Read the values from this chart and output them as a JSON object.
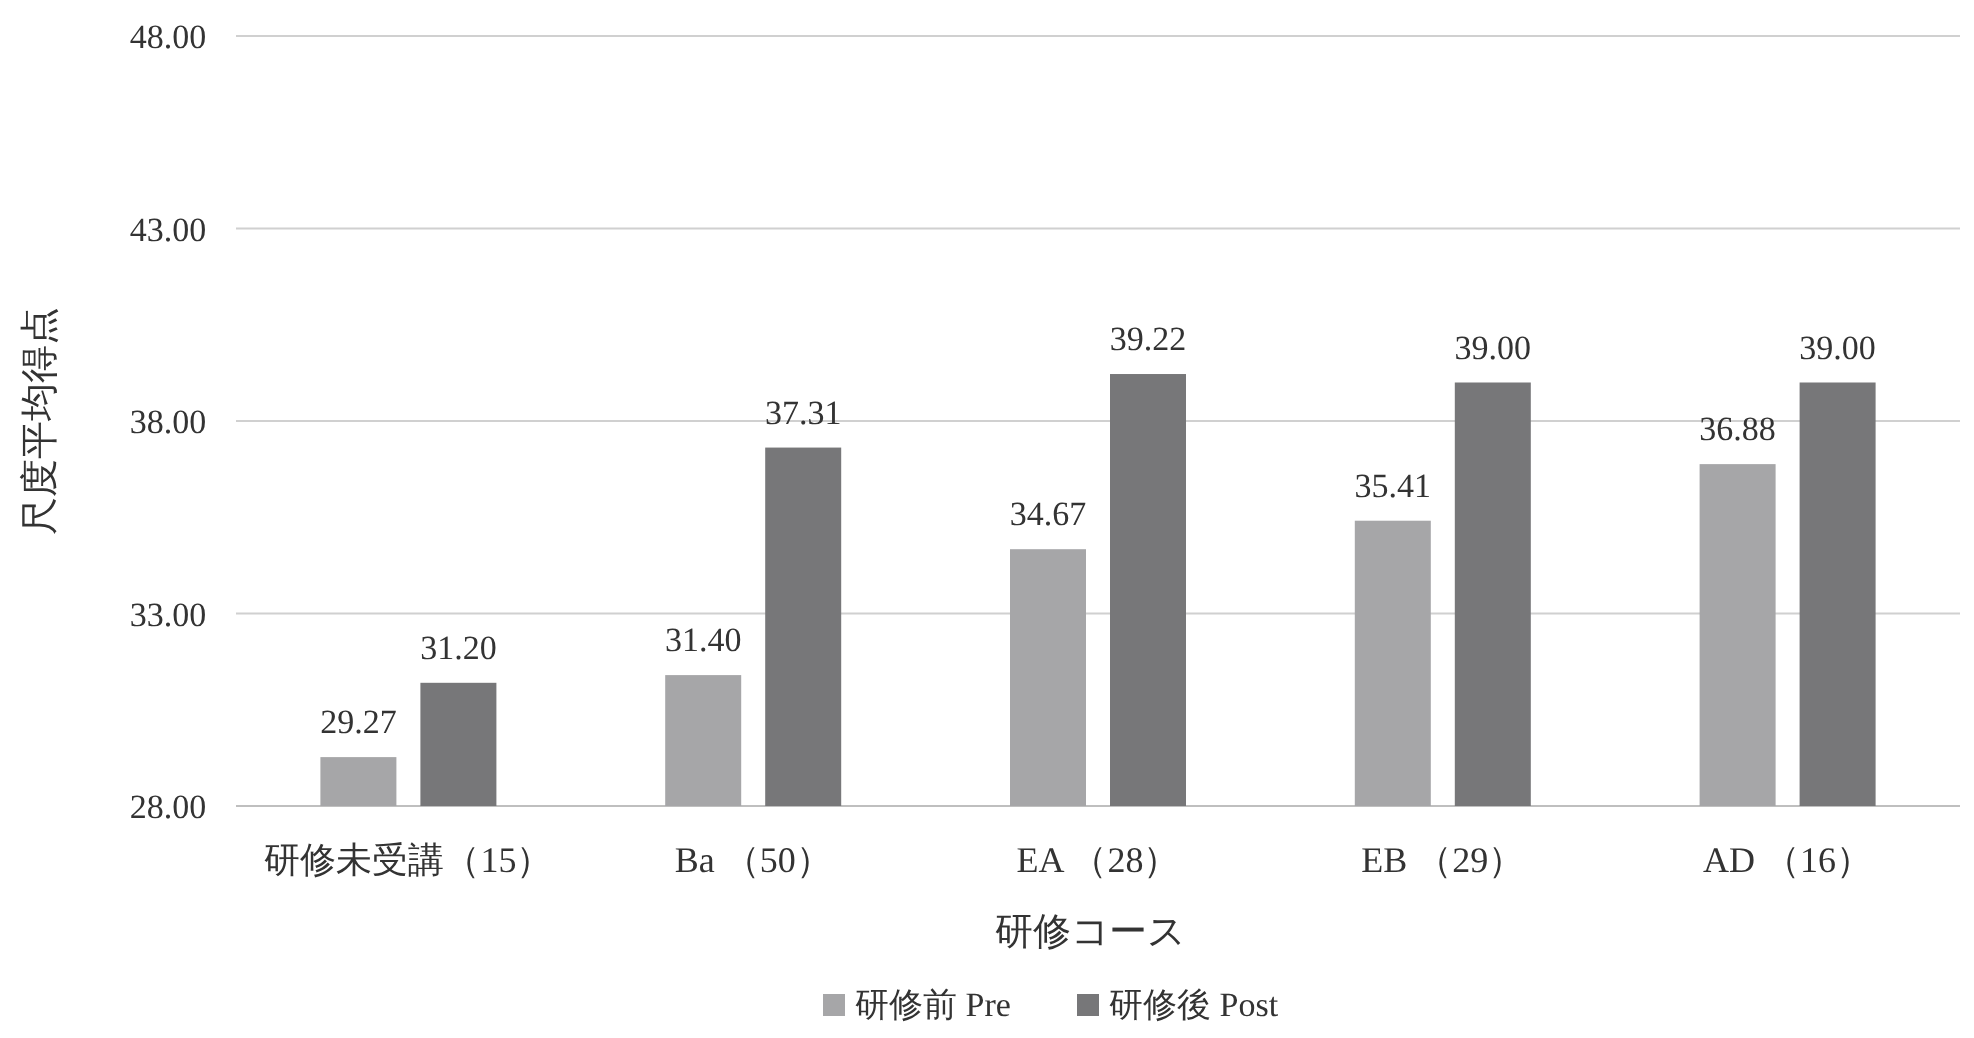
{
  "chart_data": {
    "type": "bar",
    "xlabel": "研修コース",
    "ylabel": "尺度平均得点",
    "categories": [
      "研修未受講（15）",
      "Ba （50）",
      "EA （28）",
      "EB （29）",
      "AD （16）"
    ],
    "series": [
      {
        "name": "研修前 Pre",
        "color": "#a6a6a8",
        "values": [
          29.27,
          31.4,
          34.67,
          35.41,
          36.88
        ],
        "value_labels": [
          "29.27",
          "31.40",
          "34.67",
          "35.41",
          "36.88"
        ]
      },
      {
        "name": "研修後 Post",
        "color": "#777779",
        "values": [
          31.2,
          37.31,
          39.22,
          39.0,
          39.0
        ],
        "value_labels": [
          "31.20",
          "37.31",
          "39.22",
          "39.00",
          "39.00"
        ]
      }
    ],
    "ylim": [
      28,
      48
    ],
    "yticks": [
      {
        "value": 28,
        "label": "28.00"
      },
      {
        "value": 33,
        "label": "33.00"
      },
      {
        "value": 38,
        "label": "38.00"
      },
      {
        "value": 43,
        "label": "43.00"
      },
      {
        "value": 48,
        "label": "48.00"
      }
    ],
    "grid": "y",
    "legend": "bottom"
  }
}
